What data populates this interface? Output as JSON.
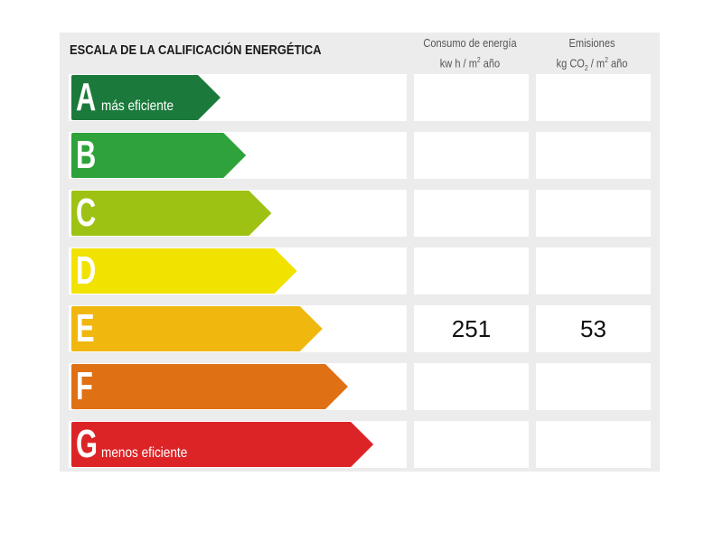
{
  "title": "ESCALA DE LA CALIFICACIÓN ENERGÉTICA",
  "columns": {
    "consumo": {
      "line1": "Consumo de energía",
      "line2_pre": "kw h / m",
      "line2_sup": "2",
      "line2_post": " año"
    },
    "emisiones": {
      "line1": "Emisiones",
      "line2_pre": "kg CO",
      "line2_sub": "2",
      "line2_mid": " / m",
      "line2_sup": "2",
      "line2_post": " año"
    }
  },
  "ratings": [
    {
      "letter": "A",
      "label": "más eficiente",
      "color": "#1b7a3b",
      "consumo": "",
      "emisiones": ""
    },
    {
      "letter": "B",
      "label": "",
      "color": "#2fa33b",
      "consumo": "",
      "emisiones": ""
    },
    {
      "letter": "C",
      "label": "",
      "color": "#9dc214",
      "consumo": "",
      "emisiones": ""
    },
    {
      "letter": "D",
      "label": "",
      "color": "#f2e200",
      "consumo": "",
      "emisiones": ""
    },
    {
      "letter": "E",
      "label": "",
      "color": "#f0b70f",
      "consumo": "251",
      "emisiones": "53"
    },
    {
      "letter": "F",
      "label": "",
      "color": "#e07014",
      "consumo": "",
      "emisiones": ""
    },
    {
      "letter": "G",
      "label": "menos eficiente",
      "color": "#dc2427",
      "consumo": "",
      "emisiones": ""
    }
  ]
}
